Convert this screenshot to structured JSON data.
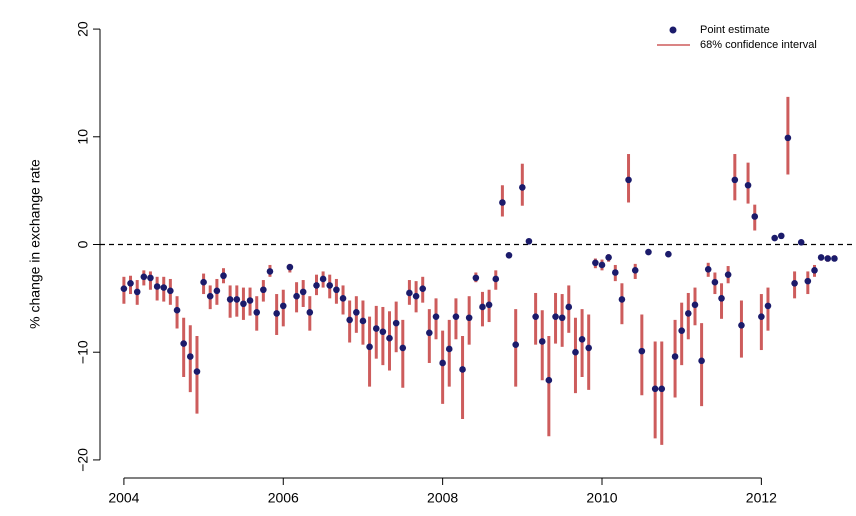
{
  "chart_data": {
    "type": "errorbar-scatter",
    "y_label": "% change in exchange rate",
    "xlim": [
      2003.7,
      2013.15
    ],
    "ylim": [
      -21.4,
      21.4
    ],
    "xticks": [
      2004,
      2006,
      2008,
      2010,
      2012
    ],
    "yticks": [
      {
        "value": -20,
        "label": "−20"
      },
      {
        "value": -10,
        "label": "−10"
      },
      0,
      10,
      20
    ],
    "reference_line": 0,
    "x": [
      2004,
      2004.083,
      2004.167,
      2004.25,
      2004.333,
      2004.417,
      2004.5,
      2004.583,
      2004.667,
      2004.75,
      2004.833,
      2004.917,
      2005,
      2005.083,
      2005.167,
      2005.25,
      2005.333,
      2005.417,
      2005.5,
      2005.583,
      2005.667,
      2005.75,
      2005.833,
      2005.917,
      2006,
      2006.083,
      2006.167,
      2006.25,
      2006.333,
      2006.417,
      2006.5,
      2006.583,
      2006.667,
      2006.75,
      2006.833,
      2006.917,
      2007,
      2007.083,
      2007.167,
      2007.25,
      2007.333,
      2007.417,
      2007.5,
      2007.583,
      2007.667,
      2007.75,
      2007.833,
      2007.917,
      2008,
      2008.083,
      2008.167,
      2008.25,
      2008.333,
      2008.417,
      2008.5,
      2008.583,
      2008.667,
      2008.75,
      2008.833,
      2008.917,
      2009,
      2009.083,
      2009.167,
      2009.25,
      2009.333,
      2009.417,
      2009.5,
      2009.583,
      2009.667,
      2009.75,
      2009.833,
      2009.917,
      2010,
      2010.083,
      2010.167,
      2010.25,
      2010.333,
      2010.417,
      2010.5,
      2010.583,
      2010.667,
      2010.75,
      2010.833,
      2010.917,
      2011,
      2011.083,
      2011.167,
      2011.25,
      2011.333,
      2011.417,
      2011.5,
      2011.583,
      2011.667,
      2011.75,
      2011.833,
      2011.917,
      2012,
      2012.083,
      2012.167,
      2012.25,
      2012.333,
      2012.417,
      2012.5,
      2012.583,
      2012.667,
      2012.75,
      2012.833,
      2012.917
    ],
    "series": [
      {
        "name": "Point estimate",
        "color": "#1b1b6b",
        "values": [
          -4.1,
          -3.6,
          -4.4,
          -3.0,
          -3.1,
          -3.9,
          -4.0,
          -4.3,
          -6.1,
          -9.2,
          -10.4,
          -11.8,
          -3.5,
          -4.8,
          -4.3,
          -2.9,
          -5.1,
          -5.1,
          -5.5,
          -5.2,
          -6.3,
          -4.2,
          -2.5,
          -6.4,
          -5.7,
          -2.1,
          -4.8,
          -4.4,
          -6.3,
          -3.8,
          -3.2,
          -3.8,
          -4.2,
          -5.0,
          -7.0,
          -6.3,
          -7.1,
          -9.5,
          -7.8,
          -8.1,
          -8.7,
          -7.3,
          -9.6,
          -4.5,
          -4.8,
          -4.1,
          -8.2,
          -6.7,
          -11.0,
          -9.7,
          -6.7,
          -11.6,
          -6.8,
          -3.1,
          -5.8,
          -5.6,
          -3.2,
          3.9,
          -1.0,
          -9.3,
          5.3,
          0.3,
          -6.7,
          -9.0,
          -12.6,
          -6.7,
          -6.8,
          -5.8,
          -10.0,
          -8.8,
          -9.6,
          -1.7,
          -1.9,
          -1.2,
          -2.6,
          -5.1,
          6.0,
          -2.4,
          -9.9,
          -0.7,
          -13.4,
          -13.4,
          -0.9,
          -10.4,
          -8.0,
          -6.4,
          -5.6,
          -10.8,
          -2.3,
          -3.5,
          -5.0,
          -2.8,
          6.0,
          -7.5,
          5.5,
          2.6,
          -6.7,
          -5.7,
          0.6,
          0.8,
          9.9,
          -3.6,
          0.2,
          -3.4,
          -2.4,
          -1.2,
          -1.3,
          -1.3
        ]
      },
      {
        "name": "68% confidence interval",
        "color": "#cd5c5c",
        "lower": [
          -5.5,
          -4.6,
          -5.6,
          -3.8,
          -4.2,
          -5.2,
          -5.3,
          -5.6,
          -7.8,
          -12.3,
          -13.7,
          -15.7,
          -4.6,
          -6.0,
          -5.6,
          -3.6,
          -6.8,
          -6.7,
          -7.0,
          -6.6,
          -8.0,
          -5.3,
          -3.0,
          -8.4,
          -7.6,
          -2.6,
          -6.3,
          -5.8,
          -8.0,
          -4.7,
          -4.0,
          -5.0,
          -5.5,
          -6.5,
          -9.1,
          -8.2,
          -9.3,
          -13.2,
          -10.6,
          -11.2,
          -11.7,
          -10.0,
          -13.3,
          -5.6,
          -6.3,
          -5.4,
          -11.0,
          -8.8,
          -14.8,
          -13.2,
          -8.8,
          -16.2,
          -9.3,
          -3.5,
          -7.6,
          -7.2,
          -4.2,
          2.6,
          -1.2,
          -13.2,
          3.6,
          0.1,
          -9.3,
          -12.6,
          -17.8,
          -9.2,
          -9.5,
          -8.2,
          -13.8,
          -12.3,
          -13.5,
          -2.2,
          -2.4,
          -1.6,
          -3.4,
          -7.4,
          3.9,
          -3.2,
          -14.0,
          -0.9,
          -18.0,
          -18.6,
          -1.1,
          -14.2,
          -11.2,
          -8.8,
          -7.5,
          -15.0,
          -3.0,
          -4.6,
          -6.9,
          -3.6,
          4.1,
          -10.5,
          3.8,
          1.3,
          -9.8,
          -8.0,
          0.4,
          0.6,
          6.5,
          -5.0,
          0.1,
          -4.6,
          -3.0,
          -1.5,
          -1.6,
          -1.5
        ],
        "upper": [
          -3.0,
          -2.9,
          -3.3,
          -2.4,
          -2.5,
          -3.0,
          -3.0,
          -3.2,
          -4.8,
          -6.8,
          -7.5,
          -8.5,
          -2.7,
          -3.8,
          -3.2,
          -2.2,
          -3.8,
          -3.8,
          -4.0,
          -4.0,
          -4.8,
          -3.3,
          -1.9,
          -4.6,
          -4.2,
          -1.8,
          -3.5,
          -3.3,
          -4.8,
          -2.8,
          -2.5,
          -2.8,
          -3.2,
          -3.8,
          -5.2,
          -4.8,
          -5.2,
          -6.7,
          -5.7,
          -5.8,
          -6.2,
          -5.3,
          -7.0,
          -3.3,
          -3.4,
          -3.0,
          -6.0,
          -5.0,
          -8.0,
          -7.0,
          -5.0,
          -8.5,
          -4.8,
          -2.6,
          -4.4,
          -4.2,
          -2.4,
          5.5,
          -0.8,
          -6.0,
          7.5,
          0.5,
          -4.5,
          -6.1,
          -8.5,
          -4.5,
          -4.6,
          -3.8,
          -6.8,
          -6.0,
          -6.5,
          -1.3,
          -1.4,
          -0.9,
          -1.9,
          -3.6,
          8.4,
          -1.8,
          -6.5,
          -0.5,
          -9.0,
          -9.0,
          -0.7,
          -7.0,
          -5.4,
          -4.5,
          -4.0,
          -7.3,
          -1.7,
          -2.6,
          -3.6,
          -2.0,
          8.4,
          -5.2,
          7.6,
          3.7,
          -4.6,
          -4.0,
          0.7,
          0.9,
          13.7,
          -2.5,
          0.3,
          -2.5,
          -1.9,
          -1.0,
          -1.0,
          -1.0
        ]
      }
    ]
  }
}
